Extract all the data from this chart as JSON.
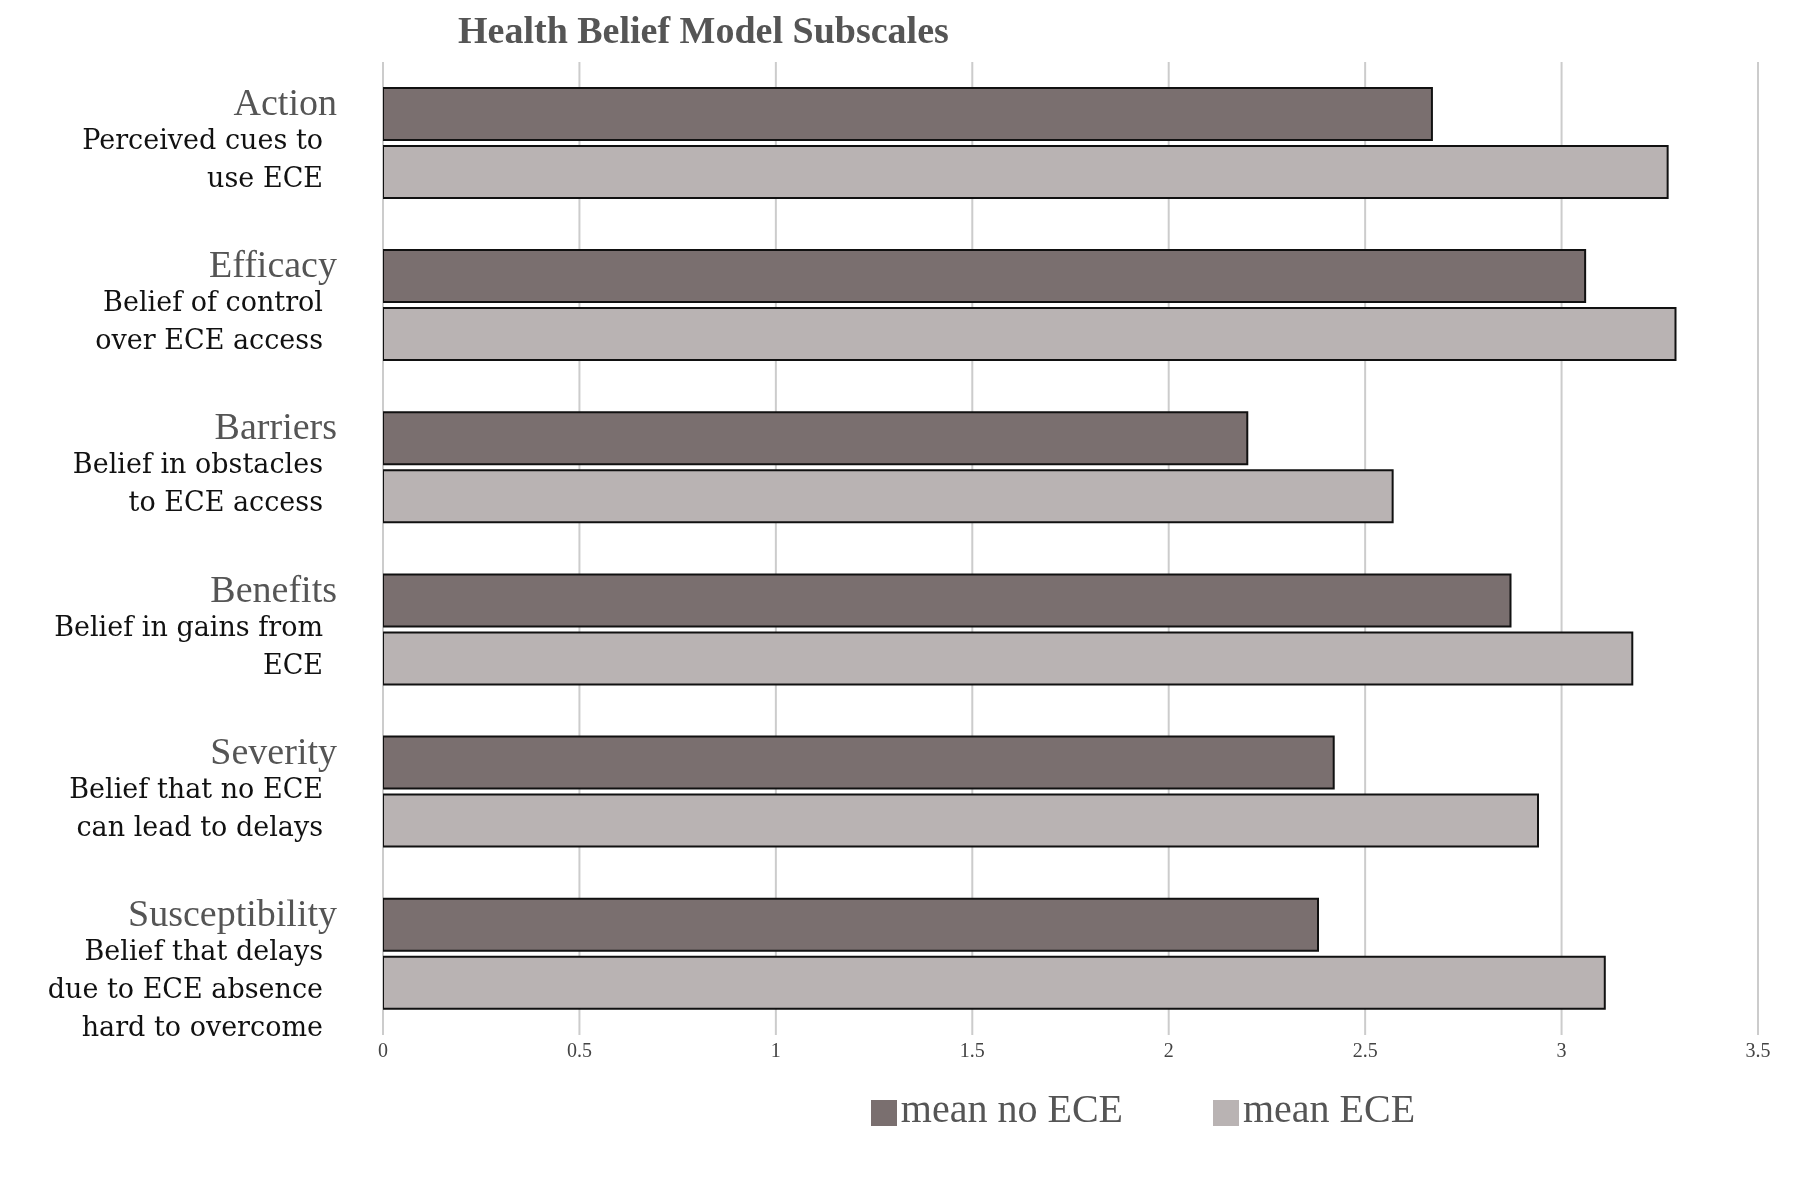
{
  "chart_data": {
    "type": "bar",
    "orientation": "horizontal",
    "title": "Health Belief Model Subscales",
    "categories": [
      "Action\nPerceived cues to use ECE",
      "Efficacy\nBelief of control over ECE access",
      "Barriers\nBelief in obstacles to ECE access",
      "Benefits\nBelief in gains from ECE",
      "Severity\nBelief that no ECE can lead to delays",
      "Susceptibility\nBelief that delays due to ECE absence hard to overcome"
    ],
    "series": [
      {
        "name": "mean no ECE",
        "color": "#7a6f6f",
        "values": [
          2.67,
          3.06,
          2.2,
          2.87,
          2.42,
          2.38
        ]
      },
      {
        "name": "mean ECE",
        "color": "#b9b3b3",
        "values": [
          3.27,
          3.29,
          2.57,
          3.18,
          2.94,
          3.11
        ]
      }
    ],
    "xlim": [
      0,
      3.5
    ],
    "xticks": [
      0,
      0.5,
      1,
      1.5,
      2,
      2.5,
      3,
      3.5
    ],
    "grid": "x",
    "legend": "bottom"
  }
}
